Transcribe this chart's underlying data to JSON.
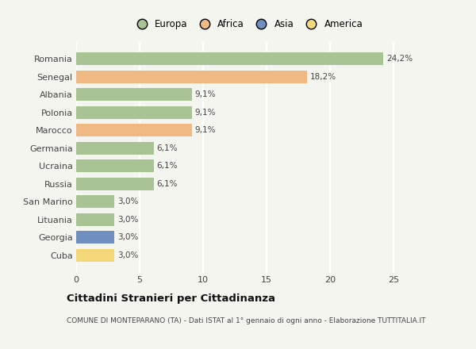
{
  "categories": [
    "Romania",
    "Senegal",
    "Albania",
    "Polonia",
    "Marocco",
    "Germania",
    "Ucraina",
    "Russia",
    "San Marino",
    "Lituania",
    "Georgia",
    "Cuba"
  ],
  "values": [
    24.2,
    18.2,
    9.1,
    9.1,
    9.1,
    6.1,
    6.1,
    6.1,
    3.0,
    3.0,
    3.0,
    3.0
  ],
  "labels": [
    "24,2%",
    "18,2%",
    "9,1%",
    "9,1%",
    "9,1%",
    "6,1%",
    "6,1%",
    "6,1%",
    "3,0%",
    "3,0%",
    "3,0%",
    "3,0%"
  ],
  "continents": [
    "Europa",
    "Africa",
    "Europa",
    "Europa",
    "Africa",
    "Europa",
    "Europa",
    "Europa",
    "Europa",
    "Europa",
    "Asia",
    "America"
  ],
  "colors": {
    "Europa": "#a8c494",
    "Africa": "#f0b882",
    "Asia": "#6e8fbf",
    "America": "#f5d87a"
  },
  "xlim": [
    0,
    27
  ],
  "xticks": [
    0,
    5,
    10,
    15,
    20,
    25
  ],
  "title": "Cittadini Stranieri per Cittadinanza",
  "subtitle": "COMUNE DI MONTEPARANO (TA) - Dati ISTAT al 1° gennaio di ogni anno - Elaborazione TUTTITALIA.IT",
  "background_color": "#f5f5f0",
  "grid_color": "#ffffff",
  "bar_height": 0.72,
  "legend_order": [
    "Europa",
    "Africa",
    "Asia",
    "America"
  ]
}
